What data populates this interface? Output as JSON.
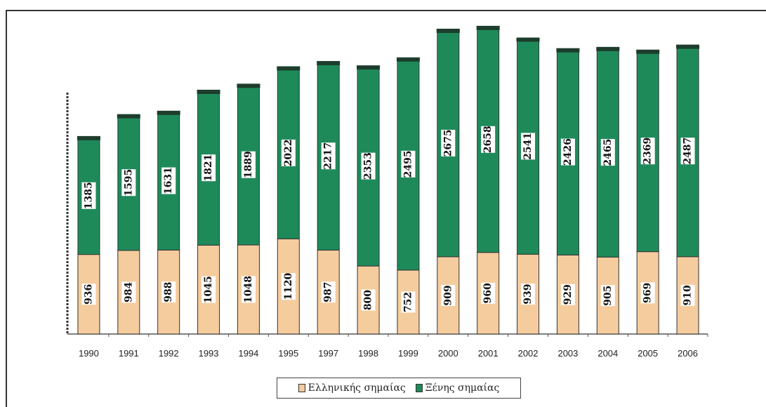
{
  "chart_data": {
    "type": "bar",
    "stacked": true,
    "categories": [
      "1990",
      "1991",
      "1992",
      "1993",
      "1994",
      "1995",
      "1997",
      "1998",
      "1999",
      "2000",
      "2001",
      "2002",
      "2003",
      "2004",
      "2005",
      "2006"
    ],
    "series": [
      {
        "name": "Ελληνικής σημαίας",
        "color": "#f5cc9e",
        "values": [
          936,
          984,
          988,
          1045,
          1048,
          1120,
          987,
          800,
          752,
          909,
          960,
          939,
          929,
          905,
          969,
          910
        ]
      },
      {
        "name": "Ξένης σημαίας",
        "color": "#1e8a5a",
        "values": [
          1385,
          1595,
          1631,
          1821,
          1889,
          2022,
          2217,
          2353,
          2495,
          2675,
          2658,
          2541,
          2426,
          2465,
          2369,
          2487
        ]
      }
    ],
    "title": "",
    "xlabel": "",
    "ylabel": "",
    "ylim": [
      0,
      3600
    ],
    "grid": false,
    "legend": "bottom"
  }
}
